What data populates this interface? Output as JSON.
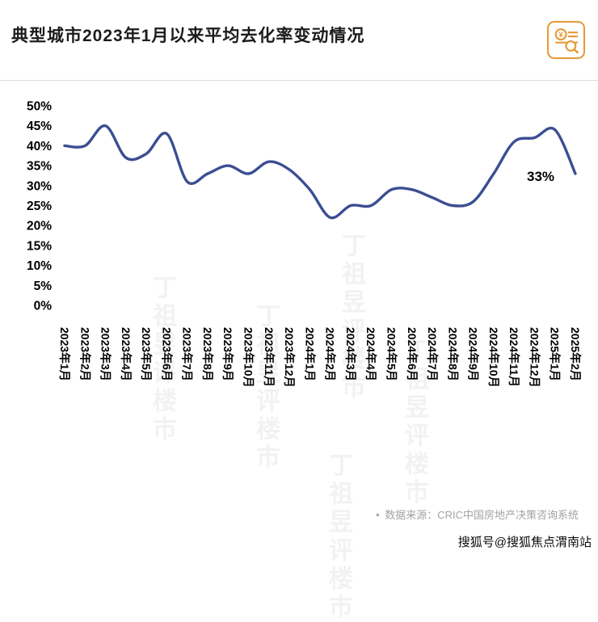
{
  "header": {
    "title": "典型城市2023年1月以来平均去化率变动情况"
  },
  "chart_data": {
    "type": "line",
    "title": "典型城市2023年1月以来平均去化率变动情况",
    "categories": [
      "2023年1月",
      "2023年2月",
      "2023年3月",
      "2023年4月",
      "2023年5月",
      "2023年6月",
      "2023年7月",
      "2023年8月",
      "2023年9月",
      "2023年10月",
      "2023年11月",
      "2023年12月",
      "2024年1月",
      "2024年2月",
      "2024年3月",
      "2024年4月",
      "2024年5月",
      "2024年6月",
      "2024年7月",
      "2024年8月",
      "2024年9月",
      "2024年10月",
      "2024年11月",
      "2024年12月",
      "2025年1月",
      "2025年2月"
    ],
    "values": [
      40,
      40,
      45,
      37,
      38,
      43,
      31,
      33,
      35,
      33,
      36,
      34,
      29,
      22,
      25,
      25,
      29,
      29,
      27,
      25,
      26,
      33,
      41,
      42,
      44,
      33
    ],
    "xlabel": "",
    "ylabel": "",
    "ylim": [
      0,
      50
    ],
    "ytick_step": 5,
    "ytick_suffix": "%",
    "grid": false,
    "legend": false,
    "line_color": "#3b4e92",
    "annotation": {
      "text": "33%",
      "index": 25
    }
  },
  "watermark": {
    "text": "丁祖昱评楼市"
  },
  "footer": {
    "bullet": "●",
    "source": "数据来源：CRIC中国房地产决策咨询系统",
    "publisher": "搜狐号@搜狐焦点渭南站"
  }
}
